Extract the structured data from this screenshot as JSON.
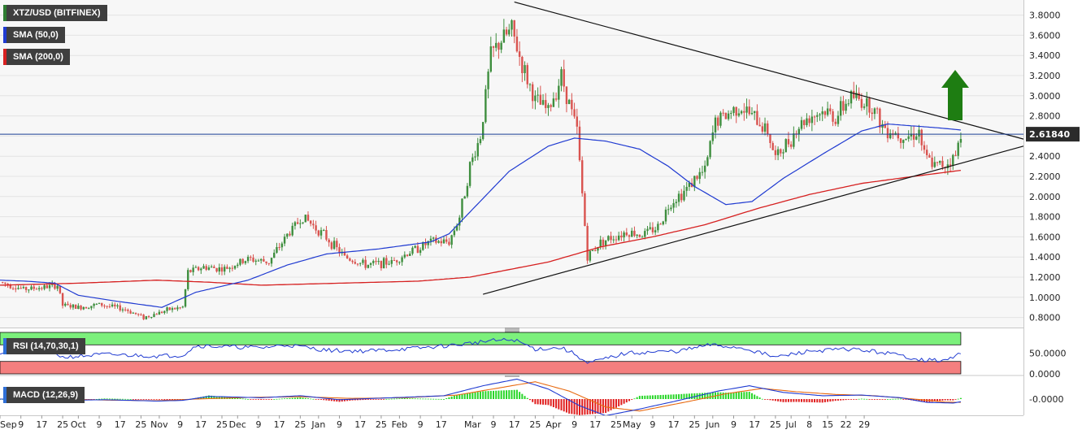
{
  "chart_data": [
    {
      "type": "candlestick",
      "title": "XTZ/USD (BITFINEX)",
      "legend": [
        {
          "name": "XTZ/USD (BITFINEX)",
          "color": "#2e7d32"
        },
        {
          "name": "SMA (50,0)",
          "color": "#1f3ad1"
        },
        {
          "name": "SMA (200,0)",
          "color": "#d62020"
        }
      ],
      "ylim": [
        0.7,
        3.95
      ],
      "y_ticks": [
        "0.8000",
        "1.0000",
        "1.2000",
        "1.4000",
        "1.6000",
        "1.8000",
        "2.0000",
        "2.2000",
        "2.4000",
        "2.6000",
        "2.8000",
        "3.0000",
        "3.2000",
        "3.4000",
        "3.6000",
        "3.8000"
      ],
      "x_ticks": [
        "Sep",
        "9",
        "17",
        "25",
        "Oct",
        "9",
        "17",
        "25",
        "Nov",
        "9",
        "17",
        "25",
        "Dec",
        "9",
        "17",
        "25",
        "Jan",
        "9",
        "17",
        "25",
        "Feb",
        "9",
        "17",
        "Mar",
        "9",
        "17",
        "25",
        "Apr",
        "9",
        "17",
        "25",
        "May",
        "9",
        "17",
        "25",
        "Jun",
        "9",
        "17",
        "25",
        "Jul",
        "8",
        "15",
        "22",
        "29"
      ],
      "current_price": "2.61840",
      "price_anchors": [
        [
          0,
          1.15
        ],
        [
          9,
          1.08
        ],
        [
          17,
          1.1
        ],
        [
          22,
          1.12
        ],
        [
          24,
          0.92
        ],
        [
          30,
          0.9
        ],
        [
          38,
          0.93
        ],
        [
          48,
          0.88
        ],
        [
          55,
          0.8
        ],
        [
          65,
          0.88
        ],
        [
          70,
          0.9
        ],
        [
          72,
          1.25
        ],
        [
          78,
          1.3
        ],
        [
          86,
          1.28
        ],
        [
          95,
          1.38
        ],
        [
          103,
          1.35
        ],
        [
          110,
          1.62
        ],
        [
          116,
          1.8
        ],
        [
          124,
          1.62
        ],
        [
          132,
          1.4
        ],
        [
          140,
          1.32
        ],
        [
          150,
          1.35
        ],
        [
          157,
          1.45
        ],
        [
          165,
          1.55
        ],
        [
          172,
          1.55
        ],
        [
          176,
          1.8
        ],
        [
          180,
          2.3
        ],
        [
          184,
          2.6
        ],
        [
          188,
          3.4
        ],
        [
          192,
          3.55
        ],
        [
          196,
          3.65
        ],
        [
          200,
          3.3
        ],
        [
          205,
          2.95
        ],
        [
          210,
          2.85
        ],
        [
          215,
          3.2
        ],
        [
          221,
          2.65
        ],
        [
          225,
          1.4
        ],
        [
          230,
          1.55
        ],
        [
          235,
          1.6
        ],
        [
          240,
          1.65
        ],
        [
          246,
          1.62
        ],
        [
          252,
          1.7
        ],
        [
          257,
          1.95
        ],
        [
          262,
          2.05
        ],
        [
          267,
          2.2
        ],
        [
          270,
          2.25
        ],
        [
          274,
          2.75
        ],
        [
          278,
          2.8
        ],
        [
          283,
          2.9
        ],
        [
          288,
          2.8
        ],
        [
          294,
          2.65
        ],
        [
          297,
          2.38
        ],
        [
          302,
          2.55
        ],
        [
          306,
          2.7
        ],
        [
          310,
          2.8
        ],
        [
          316,
          2.85
        ],
        [
          320,
          2.78
        ],
        [
          326,
          3.0
        ],
        [
          330,
          2.95
        ],
        [
          334,
          2.9
        ],
        [
          338,
          2.7
        ],
        [
          344,
          2.62
        ],
        [
          348,
          2.6
        ],
        [
          352,
          2.65
        ],
        [
          354,
          2.4
        ],
        [
          358,
          2.3
        ],
        [
          362,
          2.32
        ],
        [
          366,
          2.4
        ],
        [
          368,
          2.62
        ]
      ],
      "sma_50_anchors": [
        [
          0,
          1.17
        ],
        [
          10,
          1.16
        ],
        [
          21,
          1.14
        ],
        [
          30,
          1.02
        ],
        [
          45,
          0.96
        ],
        [
          62,
          0.9
        ],
        [
          75,
          1.05
        ],
        [
          95,
          1.17
        ],
        [
          110,
          1.32
        ],
        [
          125,
          1.43
        ],
        [
          145,
          1.48
        ],
        [
          165,
          1.55
        ],
        [
          172,
          1.63
        ],
        [
          182,
          1.9
        ],
        [
          195,
          2.25
        ],
        [
          210,
          2.5
        ],
        [
          220,
          2.58
        ],
        [
          232,
          2.55
        ],
        [
          245,
          2.47
        ],
        [
          256,
          2.3
        ],
        [
          266,
          2.1
        ],
        [
          278,
          1.92
        ],
        [
          288,
          1.95
        ],
        [
          300,
          2.18
        ],
        [
          315,
          2.42
        ],
        [
          330,
          2.65
        ],
        [
          340,
          2.72
        ],
        [
          350,
          2.7
        ],
        [
          360,
          2.68
        ],
        [
          368,
          2.66
        ]
      ],
      "sma_200_anchors": [
        [
          0,
          1.12
        ],
        [
          30,
          1.14
        ],
        [
          60,
          1.17
        ],
        [
          80,
          1.15
        ],
        [
          100,
          1.12
        ],
        [
          130,
          1.14
        ],
        [
          160,
          1.16
        ],
        [
          180,
          1.2
        ],
        [
          210,
          1.35
        ],
        [
          230,
          1.5
        ],
        [
          250,
          1.6
        ],
        [
          270,
          1.72
        ],
        [
          290,
          1.88
        ],
        [
          310,
          2.02
        ],
        [
          330,
          2.13
        ],
        [
          350,
          2.2
        ],
        [
          368,
          2.26
        ]
      ],
      "trendline_resistance": [
        [
          197,
          3.93
        ],
        [
          392,
          2.57
        ]
      ],
      "trendline_support": [
        [
          185,
          1.03
        ],
        [
          392,
          2.5
        ]
      ],
      "annotation": "up-arrow"
    },
    {
      "type": "line",
      "title": "RSI (14,70,30,1)",
      "ylim": [
        0,
        100
      ],
      "y_ticks": [
        "0.0000",
        "50.0000"
      ],
      "bands": {
        "overbought": 70,
        "oversold": 30
      },
      "values_anchors": [
        [
          0,
          52
        ],
        [
          20,
          55
        ],
        [
          24,
          40
        ],
        [
          40,
          47
        ],
        [
          60,
          43
        ],
        [
          70,
          45
        ],
        [
          75,
          68
        ],
        [
          100,
          63
        ],
        [
          110,
          70
        ],
        [
          125,
          57
        ],
        [
          140,
          55
        ],
        [
          160,
          62
        ],
        [
          175,
          70
        ],
        [
          188,
          80
        ],
        [
          197,
          82
        ],
        [
          205,
          60
        ],
        [
          215,
          63
        ],
        [
          221,
          45
        ],
        [
          225,
          25
        ],
        [
          240,
          50
        ],
        [
          260,
          55
        ],
        [
          272,
          70
        ],
        [
          285,
          62
        ],
        [
          297,
          40
        ],
        [
          310,
          55
        ],
        [
          326,
          60
        ],
        [
          340,
          50
        ],
        [
          354,
          33
        ],
        [
          362,
          32
        ],
        [
          366,
          42
        ],
        [
          368,
          52
        ]
      ]
    },
    {
      "type": "bar+line",
      "title": "MACD (12,26,9)",
      "y_ticks": [
        "-0.0000"
      ],
      "macd_anchors": [
        [
          0,
          0
        ],
        [
          20,
          0.005
        ],
        [
          24,
          -0.02
        ],
        [
          40,
          -0.01
        ],
        [
          60,
          -0.03
        ],
        [
          70,
          -0.02
        ],
        [
          80,
          0.04
        ],
        [
          100,
          0.02
        ],
        [
          115,
          0.05
        ],
        [
          130,
          -0.01
        ],
        [
          150,
          0.02
        ],
        [
          170,
          0.05
        ],
        [
          185,
          0.2
        ],
        [
          198,
          0.3
        ],
        [
          210,
          0.15
        ],
        [
          222,
          -0.1
        ],
        [
          232,
          -0.25
        ],
        [
          245,
          -0.15
        ],
        [
          260,
          -0.02
        ],
        [
          275,
          0.12
        ],
        [
          287,
          0.2
        ],
        [
          300,
          0.1
        ],
        [
          315,
          0.05
        ],
        [
          330,
          0.06
        ],
        [
          345,
          0.02
        ],
        [
          355,
          -0.05
        ],
        [
          365,
          -0.06
        ],
        [
          368,
          -0.04
        ]
      ],
      "signal_anchors": [
        [
          0,
          0
        ],
        [
          25,
          0.0
        ],
        [
          40,
          -0.015
        ],
        [
          60,
          -0.025
        ],
        [
          75,
          0.0
        ],
        [
          95,
          0.025
        ],
        [
          115,
          0.035
        ],
        [
          135,
          0.01
        ],
        [
          155,
          0.02
        ],
        [
          175,
          0.06
        ],
        [
          190,
          0.16
        ],
        [
          205,
          0.26
        ],
        [
          218,
          0.12
        ],
        [
          232,
          -0.12
        ],
        [
          245,
          -0.18
        ],
        [
          262,
          -0.05
        ],
        [
          278,
          0.08
        ],
        [
          292,
          0.16
        ],
        [
          305,
          0.11
        ],
        [
          320,
          0.07
        ],
        [
          335,
          0.05
        ],
        [
          350,
          0.0
        ],
        [
          362,
          -0.045
        ],
        [
          368,
          -0.05
        ]
      ]
    }
  ]
}
